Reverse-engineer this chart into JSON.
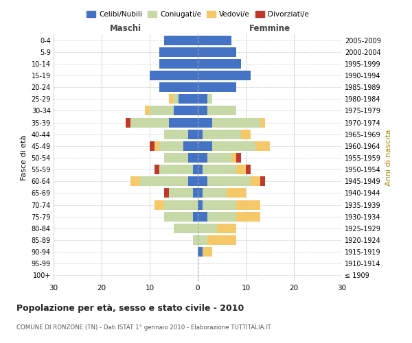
{
  "age_groups": [
    "100+",
    "95-99",
    "90-94",
    "85-89",
    "80-84",
    "75-79",
    "70-74",
    "65-69",
    "60-64",
    "55-59",
    "50-54",
    "45-49",
    "40-44",
    "35-39",
    "30-34",
    "25-29",
    "20-24",
    "15-19",
    "10-14",
    "5-9",
    "0-4"
  ],
  "birth_years": [
    "≤ 1909",
    "1910-1914",
    "1915-1919",
    "1920-1924",
    "1925-1929",
    "1930-1934",
    "1935-1939",
    "1940-1944",
    "1945-1949",
    "1950-1954",
    "1955-1959",
    "1960-1964",
    "1965-1969",
    "1970-1974",
    "1975-1979",
    "1980-1984",
    "1985-1989",
    "1990-1994",
    "1995-1999",
    "2000-2004",
    "2005-2009"
  ],
  "maschi": {
    "celibi": [
      0,
      0,
      0,
      0,
      0,
      1,
      0,
      1,
      2,
      1,
      2,
      3,
      2,
      6,
      5,
      4,
      8,
      10,
      8,
      8,
      7
    ],
    "coniugati": [
      0,
      0,
      0,
      1,
      5,
      6,
      7,
      5,
      10,
      7,
      5,
      5,
      5,
      8,
      5,
      1,
      0,
      0,
      0,
      0,
      0
    ],
    "vedovi": [
      0,
      0,
      0,
      0,
      0,
      0,
      2,
      0,
      2,
      0,
      0,
      1,
      0,
      0,
      1,
      1,
      0,
      0,
      0,
      0,
      0
    ],
    "divorziati": [
      0,
      0,
      0,
      0,
      0,
      0,
      0,
      1,
      0,
      1,
      0,
      1,
      0,
      1,
      0,
      0,
      0,
      0,
      0,
      0,
      0
    ]
  },
  "femmine": {
    "nubili": [
      0,
      0,
      1,
      0,
      0,
      2,
      1,
      1,
      2,
      1,
      2,
      3,
      1,
      3,
      2,
      2,
      8,
      11,
      9,
      8,
      7
    ],
    "coniugate": [
      0,
      0,
      0,
      2,
      4,
      6,
      7,
      5,
      9,
      7,
      5,
      9,
      8,
      10,
      6,
      1,
      0,
      0,
      0,
      0,
      0
    ],
    "vedove": [
      0,
      0,
      2,
      6,
      4,
      5,
      5,
      4,
      2,
      2,
      1,
      3,
      2,
      1,
      0,
      0,
      0,
      0,
      0,
      0,
      0
    ],
    "divorziate": [
      0,
      0,
      0,
      0,
      0,
      0,
      0,
      0,
      1,
      1,
      1,
      0,
      0,
      0,
      0,
      0,
      0,
      0,
      0,
      0,
      0
    ]
  },
  "colors": {
    "celibi_nubili": "#4472C4",
    "coniugati": "#C8D9A8",
    "vedovi": "#F5C96A",
    "divorziati": "#C0392B"
  },
  "xlim": 30,
  "title": "Popolazione per età, sesso e stato civile - 2010",
  "subtitle": "COMUNE DI RONZONE (TN) - Dati ISTAT 1° gennaio 2010 - Elaborazione TUTTITALIA.IT",
  "ylabel_left": "Fasce di età",
  "ylabel_right": "Anni di nascita",
  "xlabel_maschi": "Maschi",
  "xlabel_femmine": "Femmine",
  "legend_labels": [
    "Celibi/Nubili",
    "Coniugati/e",
    "Vedovi/e",
    "Divorziati/e"
  ]
}
